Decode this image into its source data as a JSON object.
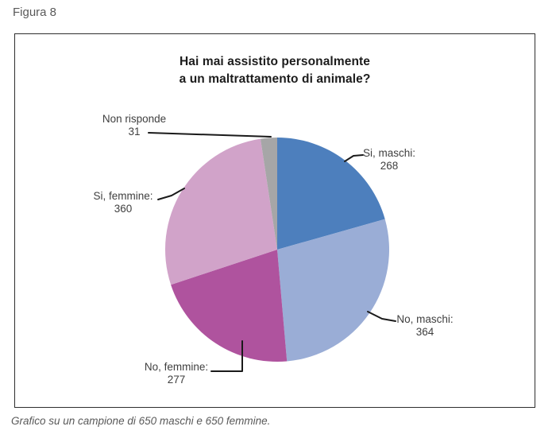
{
  "figure_label": "Figura 8",
  "chart_data": {
    "type": "pie",
    "title_line1": "Hai mai assistito personalmente",
    "title_line2": "a un maltrattamento di animale?",
    "total": 1300,
    "direction": "clockwise",
    "start_angle": "12 o'clock",
    "segments": [
      {
        "label": "Si, maschi",
        "label_text": "Si, maschi:",
        "value": 268,
        "color": "#4d7fbd"
      },
      {
        "label": "No, maschi",
        "label_text": "No, maschi:",
        "value": 364,
        "color": "#9aadd6"
      },
      {
        "label": "No, femmine",
        "label_text": "No, femmine:",
        "value": 277,
        "color": "#af539e"
      },
      {
        "label": "Si, femmine",
        "label_text": "Si, femmine:",
        "value": 360,
        "color": "#d1a3c9"
      },
      {
        "label": "Non risponde",
        "label_text": "Non risponde",
        "value": 31,
        "color": "#a6a6a7"
      }
    ],
    "leader_line_color": "#1a1a1a"
  },
  "caption": "Grafico su un campione di 650 maschi e 650 femmine."
}
